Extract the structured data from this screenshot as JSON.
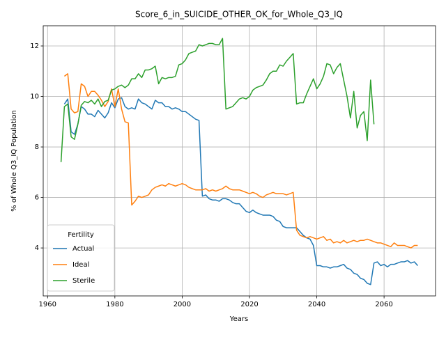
{
  "chart_data": {
    "type": "line",
    "title": "Score_6_in_SUICIDE_OTHER_OK_for_Whole_Q3_IQ",
    "xlabel": "Years",
    "ylabel": "% of Whole Q3_IQ Population",
    "legend_title": "Fertility",
    "legend_loc": "lower left",
    "grid": true,
    "xlim": [
      1958.7,
      2075.3
    ],
    "ylim": [
      2.1,
      12.8
    ],
    "xticks": [
      1960,
      1980,
      2000,
      2020,
      2040,
      2060
    ],
    "yticks": [
      4,
      6,
      8,
      10,
      12
    ],
    "x": [
      1964,
      1965,
      1966,
      1967,
      1968,
      1969,
      1970,
      1971,
      1972,
      1973,
      1974,
      1975,
      1976,
      1977,
      1978,
      1979,
      1980,
      1981,
      1982,
      1983,
      1984,
      1985,
      1986,
      1987,
      1988,
      1989,
      1990,
      1991,
      1992,
      1993,
      1994,
      1995,
      1996,
      1997,
      1998,
      1999,
      2000,
      2001,
      2002,
      2003,
      2004,
      2005,
      2006,
      2007,
      2008,
      2009,
      2010,
      2011,
      2012,
      2013,
      2014,
      2015,
      2016,
      2017,
      2018,
      2019,
      2020,
      2021,
      2022,
      2023,
      2024,
      2025,
      2026,
      2027,
      2028,
      2029,
      2030,
      2031,
      2032,
      2033,
      2034,
      2035,
      2036,
      2037,
      2038,
      2039,
      2040,
      2041,
      2042,
      2043,
      2044,
      2045,
      2046,
      2047,
      2048,
      2049,
      2050,
      2051,
      2052,
      2053,
      2054,
      2055,
      2056,
      2057,
      2058,
      2059,
      2060,
      2061,
      2062,
      2063,
      2064,
      2065,
      2066,
      2067,
      2068,
      2069,
      2070
    ],
    "series": [
      {
        "name": "Actual",
        "color": "#1f77b4",
        "values": [
          null,
          9.7,
          9.9,
          8.6,
          8.5,
          8.9,
          9.6,
          9.5,
          9.3,
          9.3,
          9.2,
          9.45,
          9.3,
          9.15,
          9.35,
          9.75,
          9.55,
          9.9,
          9.95,
          9.6,
          9.5,
          9.55,
          9.5,
          9.9,
          9.75,
          9.7,
          9.6,
          9.5,
          9.85,
          9.75,
          9.75,
          9.6,
          9.6,
          9.5,
          9.55,
          9.5,
          9.4,
          9.4,
          9.3,
          9.2,
          9.1,
          9.05,
          6.05,
          6.1,
          5.95,
          5.9,
          5.9,
          5.85,
          5.95,
          5.95,
          5.9,
          5.8,
          5.75,
          5.75,
          5.6,
          5.45,
          5.4,
          5.5,
          5.4,
          5.35,
          5.3,
          5.3,
          5.3,
          5.25,
          5.1,
          5.05,
          4.85,
          4.8,
          4.8,
          4.8,
          4.8,
          4.65,
          4.5,
          4.4,
          4.35,
          4.1,
          3.3,
          3.3,
          3.25,
          3.25,
          3.2,
          3.25,
          3.25,
          3.3,
          3.35,
          3.2,
          3.15,
          3.0,
          2.95,
          2.8,
          2.75,
          2.6,
          2.55,
          3.4,
          3.45,
          3.3,
          3.35,
          3.25,
          3.35,
          3.35,
          3.4,
          3.45,
          3.45,
          3.5,
          3.4,
          3.45,
          3.3
        ]
      },
      {
        "name": "Ideal",
        "color": "#ff7f0e",
        "values": [
          null,
          10.8,
          10.9,
          9.5,
          9.35,
          9.4,
          10.5,
          10.4,
          10.0,
          10.2,
          10.2,
          10.05,
          9.85,
          9.6,
          9.8,
          10.3,
          9.6,
          10.3,
          9.5,
          9.0,
          8.95,
          5.7,
          5.85,
          6.05,
          6.0,
          6.05,
          6.1,
          6.3,
          6.4,
          6.45,
          6.5,
          6.45,
          6.55,
          6.5,
          6.45,
          6.5,
          6.55,
          6.5,
          6.4,
          6.35,
          6.3,
          6.3,
          6.3,
          6.35,
          6.25,
          6.3,
          6.25,
          6.3,
          6.35,
          6.45,
          6.35,
          6.3,
          6.3,
          6.3,
          6.25,
          6.2,
          6.15,
          6.2,
          6.15,
          6.05,
          6.0,
          6.1,
          6.15,
          6.2,
          6.15,
          6.15,
          6.15,
          6.1,
          6.15,
          6.2,
          4.7,
          4.5,
          4.45,
          4.4,
          4.45,
          4.4,
          4.35,
          4.4,
          4.45,
          4.3,
          4.35,
          4.2,
          4.25,
          4.2,
          4.3,
          4.2,
          4.25,
          4.3,
          4.25,
          4.3,
          4.3,
          4.35,
          4.3,
          4.25,
          4.2,
          4.2,
          4.15,
          4.1,
          4.05,
          4.2,
          4.1,
          4.1,
          4.1,
          4.05,
          4.0,
          4.1,
          4.1
        ]
      },
      {
        "name": "Sterile",
        "color": "#2ca02c",
        "values": [
          7.4,
          9.6,
          9.7,
          8.4,
          8.3,
          8.9,
          9.65,
          9.8,
          9.75,
          9.85,
          9.7,
          9.9,
          9.6,
          9.8,
          9.85,
          10.25,
          10.3,
          10.4,
          10.45,
          10.35,
          10.45,
          10.7,
          10.7,
          10.9,
          10.75,
          11.05,
          11.05,
          11.1,
          11.2,
          10.5,
          10.75,
          10.7,
          10.75,
          10.75,
          10.8,
          11.25,
          11.3,
          11.45,
          11.7,
          11.75,
          11.8,
          12.05,
          12.0,
          12.05,
          12.1,
          12.1,
          12.05,
          12.05,
          12.3,
          9.5,
          9.55,
          9.6,
          9.75,
          9.9,
          9.95,
          9.9,
          10.0,
          10.25,
          10.35,
          10.4,
          10.45,
          10.65,
          10.9,
          11.0,
          11.0,
          11.25,
          11.2,
          11.4,
          11.55,
          11.7,
          9.7,
          9.75,
          9.75,
          10.1,
          10.4,
          10.7,
          10.3,
          10.5,
          10.8,
          11.3,
          11.25,
          10.9,
          11.15,
          11.3,
          10.65,
          10.0,
          9.15,
          10.2,
          8.75,
          9.25,
          9.4,
          8.25,
          10.65,
          8.9,
          null,
          null,
          null,
          null,
          null,
          null,
          null,
          null,
          null,
          null,
          null,
          null,
          null
        ]
      }
    ]
  }
}
